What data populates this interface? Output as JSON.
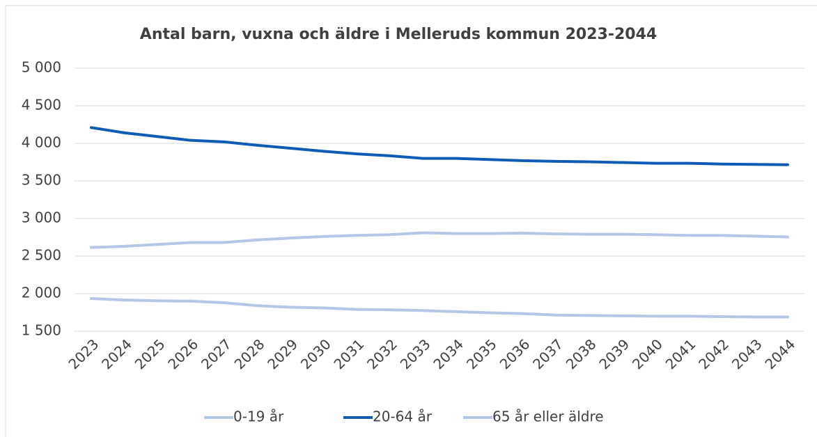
{
  "chart_data": {
    "type": "line",
    "title": "Antal barn, vuxna och äldre i Melleruds kommun 2023-2044",
    "categories": [
      "2023",
      "2024",
      "2025",
      "2026",
      "2027",
      "2028",
      "2029",
      "2030",
      "2031",
      "2032",
      "2033",
      "2034",
      "2035",
      "2036",
      "2037",
      "2038",
      "2039",
      "2040",
      "2041",
      "2042",
      "2043",
      "2044"
    ],
    "series": [
      {
        "name": "0-19 år",
        "color": "#b4c7e7",
        "values": [
          1935,
          1915,
          1905,
          1900,
          1880,
          1840,
          1820,
          1810,
          1790,
          1785,
          1775,
          1760,
          1745,
          1735,
          1715,
          1710,
          1705,
          1700,
          1700,
          1695,
          1690,
          1690
        ]
      },
      {
        "name": "20-64 år",
        "color": "#0f5bb5",
        "values": [
          4210,
          4140,
          4090,
          4040,
          4020,
          3975,
          3935,
          3895,
          3860,
          3835,
          3800,
          3800,
          3785,
          3770,
          3760,
          3755,
          3745,
          3735,
          3735,
          3725,
          3720,
          3715
        ]
      },
      {
        "name": "65 år eller äldre",
        "color": "#b4c7e7",
        "values": [
          2615,
          2630,
          2655,
          2680,
          2680,
          2715,
          2740,
          2760,
          2775,
          2785,
          2810,
          2800,
          2800,
          2805,
          2795,
          2790,
          2790,
          2785,
          2775,
          2775,
          2765,
          2755
        ]
      }
    ],
    "ylim": [
      1500,
      5000
    ],
    "yticks": [
      {
        "value": 1500,
        "label": "1 500"
      },
      {
        "value": 2000,
        "label": "2 000"
      },
      {
        "value": 2500,
        "label": "2 500"
      },
      {
        "value": 3000,
        "label": "3 000"
      },
      {
        "value": 3500,
        "label": "3 500"
      },
      {
        "value": 4000,
        "label": "4 000"
      },
      {
        "value": 4500,
        "label": "4 500"
      },
      {
        "value": 5000,
        "label": "5 000"
      }
    ],
    "grid": true,
    "legend": "bottom"
  }
}
